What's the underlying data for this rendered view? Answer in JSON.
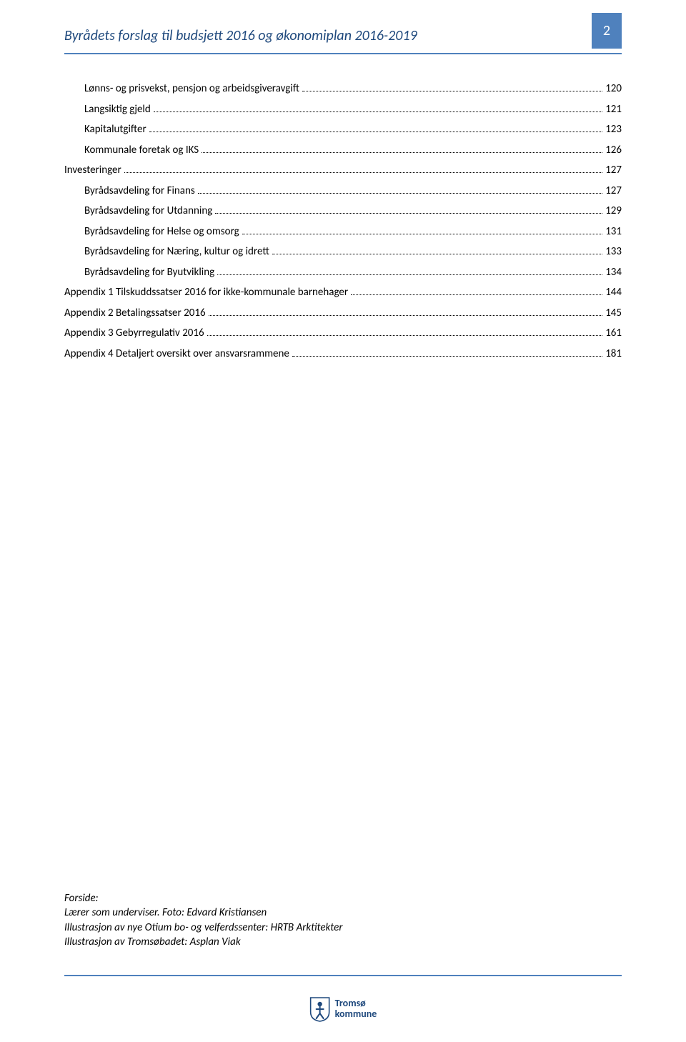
{
  "header": {
    "title": "Byrådets forslag til budsjett 2016 og økonomiplan 2016-2019",
    "page_number": "2",
    "accent_color": "#4f81bd",
    "title_color": "#1f497d"
  },
  "toc": [
    {
      "label": "Lønns- og prisvekst, pensjon og arbeidsgiveravgift",
      "page": "120",
      "indent": 1
    },
    {
      "label": "Langsiktig gjeld",
      "page": "121",
      "indent": 1
    },
    {
      "label": "Kapitalutgifter",
      "page": "123",
      "indent": 1
    },
    {
      "label": "Kommunale foretak og IKS",
      "page": "126",
      "indent": 1
    },
    {
      "label": "Investeringer",
      "page": "127",
      "indent": 0
    },
    {
      "label": "Byrådsavdeling for Finans",
      "page": "127",
      "indent": 1
    },
    {
      "label": "Byrådsavdeling for Utdanning",
      "page": "129",
      "indent": 1
    },
    {
      "label": "Byrådsavdeling for Helse og omsorg",
      "page": "131",
      "indent": 1
    },
    {
      "label": "Byrådsavdeling for Næring, kultur og idrett",
      "page": "133",
      "indent": 1
    },
    {
      "label": "Byrådsavdeling for Byutvikling",
      "page": "134",
      "indent": 1
    },
    {
      "label": "Appendix 1 Tilskuddssatser 2016 for ikke-kommunale barnehager",
      "page": "144",
      "indent": 0
    },
    {
      "label": "Appendix 2 Betalingssatser 2016",
      "page": "145",
      "indent": 0
    },
    {
      "label": "Appendix 3 Gebyrregulativ 2016",
      "page": "161",
      "indent": 0
    },
    {
      "label": "Appendix 4 Detaljert oversikt over ansvarsrammene",
      "page": "181",
      "indent": 0
    }
  ],
  "footer_note": {
    "line1": "Forside:",
    "line2": "Lærer som underviser. Foto: Edvard Kristiansen",
    "line3": "Illustrasjon av nye Otium bo- og velferdssenter: HRTB Arktitekter",
    "line4": "Illustrasjon av Tromsøbadet: Asplan Viak"
  },
  "footer_logo": {
    "line1": "Tromsø",
    "line2": "kommune",
    "shield_colors": {
      "bg": "#ffffff",
      "border": "#1f497d",
      "figure": "#1f497d"
    }
  }
}
